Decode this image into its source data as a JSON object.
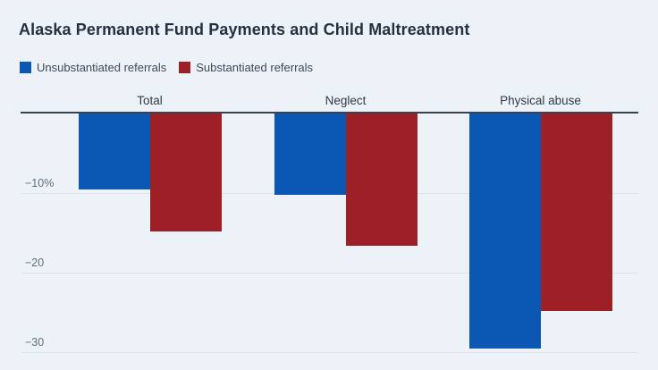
{
  "header": {
    "title": "Alaska Permanent Fund Payments and Child Maltreatment"
  },
  "legend": {
    "items": [
      {
        "label": "Unsubstantiated referrals",
        "color": "#0a58b3"
      },
      {
        "label": "Substantiated referrals",
        "color": "#9c2026"
      }
    ]
  },
  "colors": {
    "background": "#edf1f8",
    "axis_line": "#3a424d",
    "gridline": "#dde3ec",
    "title_text": "#243140",
    "category_text": "#2e3b49",
    "tick_text": "#626e7c"
  },
  "chart_data": {
    "type": "bar",
    "title": "Alaska Permanent Fund Payments and Child Maltreatment",
    "categories": [
      "Total",
      "Neglect",
      "Physical abuse"
    ],
    "series": [
      {
        "name": "Unsubstantiated referrals",
        "color": "#0a58b3",
        "values": [
          -9.8,
          -10.5,
          -29.8
        ]
      },
      {
        "name": "Substantiated referrals",
        "color": "#9c2026",
        "values": [
          -15.0,
          -16.8,
          -25.0
        ]
      }
    ],
    "unit": "%",
    "yticks": [
      {
        "value": -10,
        "label": "−10%"
      },
      {
        "value": -20,
        "label": "−20"
      },
      {
        "value": -30,
        "label": "−30"
      }
    ],
    "ylim": [
      -31,
      0
    ],
    "grid": true,
    "baseline_value": 0,
    "legend_position": "top-left",
    "orientation": "vertical-negative"
  }
}
